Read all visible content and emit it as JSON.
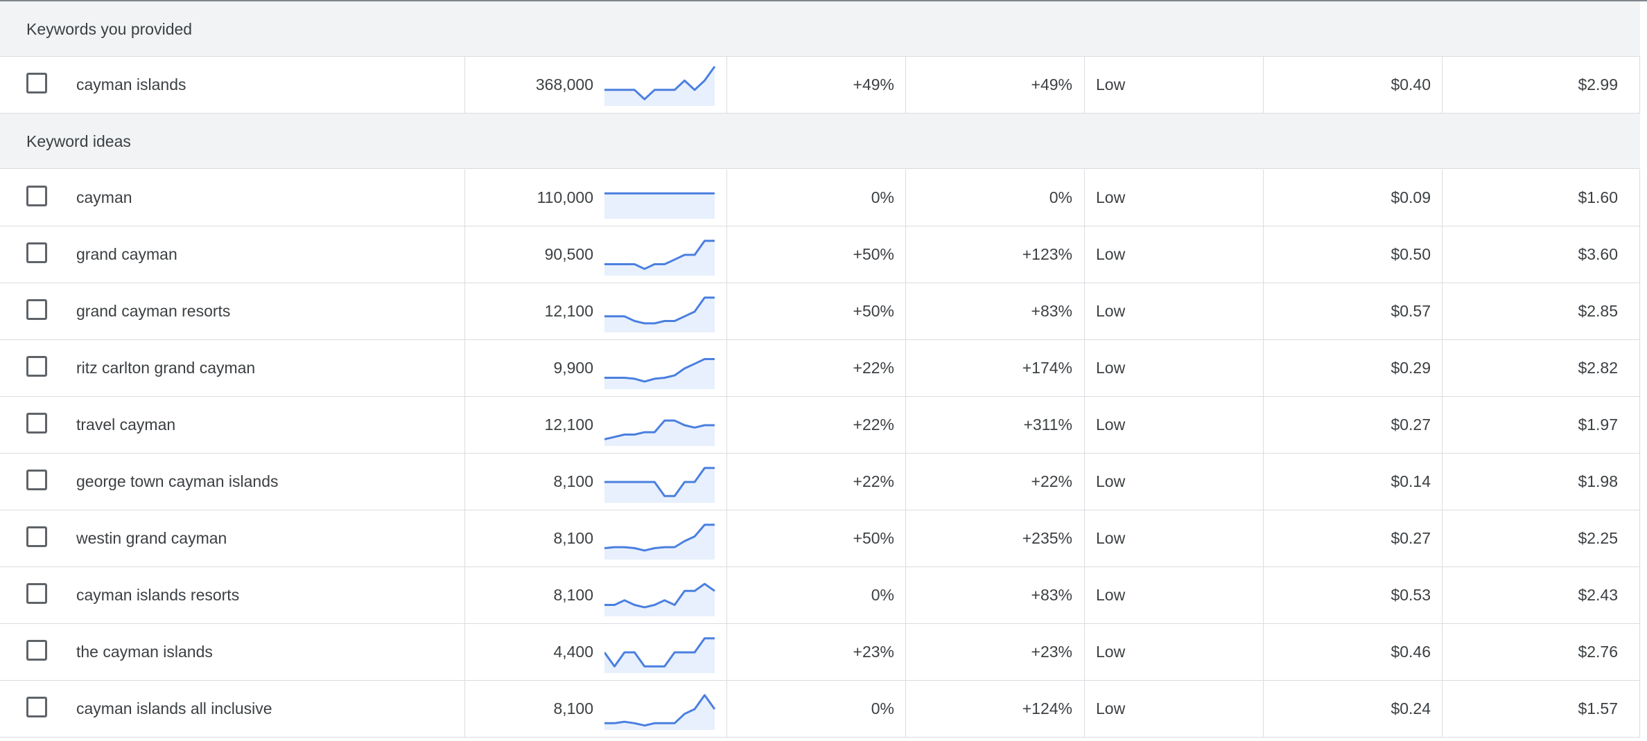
{
  "colors": {
    "sparkline_line": "#4a7fe0",
    "sparkline_fill": "#e8f0fd",
    "section_bg": "#f1f3f4",
    "divider": "#dadce0",
    "text": "#3c4043"
  },
  "provided_section": {
    "title": "Keywords you provided",
    "rows": [
      {
        "keyword": "cayman islands",
        "volume": "368,000",
        "change_3m": "+49%",
        "change_yoy": "+49%",
        "competition": "Low",
        "bid_low": "$0.40",
        "bid_high": "$2.99",
        "trend": [
          3,
          3,
          3,
          3,
          1,
          3,
          3,
          3,
          5,
          3,
          5,
          8
        ]
      }
    ]
  },
  "ideas_section": {
    "title": "Keyword ideas",
    "rows": [
      {
        "keyword": "cayman",
        "volume": "110,000",
        "change_3m": "0%",
        "change_yoy": "0%",
        "competition": "Low",
        "bid_low": "$0.09",
        "bid_high": "$1.60",
        "trend": [
          5,
          5,
          5,
          5,
          5,
          5,
          5,
          5,
          5,
          5,
          5,
          5
        ]
      },
      {
        "keyword": "grand cayman",
        "volume": "90,500",
        "change_3m": "+50%",
        "change_yoy": "+123%",
        "competition": "Low",
        "bid_low": "$0.50",
        "bid_high": "$3.60",
        "trend": [
          2,
          2,
          2,
          2,
          1,
          2,
          2,
          3,
          4,
          4,
          7,
          7
        ]
      },
      {
        "keyword": "grand cayman resorts",
        "volume": "12,100",
        "change_3m": "+50%",
        "change_yoy": "+83%",
        "competition": "Low",
        "bid_low": "$0.57",
        "bid_high": "$2.85",
        "trend": [
          3,
          3,
          3,
          2,
          1.5,
          1.5,
          2,
          2,
          3,
          4,
          7,
          7
        ]
      },
      {
        "keyword": "ritz carlton grand cayman",
        "volume": "9,900",
        "change_3m": "+22%",
        "change_yoy": "+174%",
        "competition": "Low",
        "bid_low": "$0.29",
        "bid_high": "$2.82",
        "trend": [
          2,
          2,
          2,
          1.8,
          1.2,
          1.8,
          2,
          2.5,
          4,
          5,
          6,
          6
        ]
      },
      {
        "keyword": "travel cayman",
        "volume": "12,100",
        "change_3m": "+22%",
        "change_yoy": "+311%",
        "competition": "Low",
        "bid_low": "$0.27",
        "bid_high": "$1.97",
        "trend": [
          1,
          1.5,
          2,
          2,
          2.5,
          2.5,
          5,
          5,
          4,
          3.5,
          4,
          4
        ]
      },
      {
        "keyword": "george town cayman islands",
        "volume": "8,100",
        "change_3m": "+22%",
        "change_yoy": "+22%",
        "competition": "Low",
        "bid_low": "$0.14",
        "bid_high": "$1.98",
        "trend": [
          4,
          4,
          4,
          4,
          4,
          4,
          1,
          1,
          4,
          4,
          7,
          7
        ]
      },
      {
        "keyword": "westin grand cayman",
        "volume": "8,100",
        "change_3m": "+50%",
        "change_yoy": "+235%",
        "competition": "Low",
        "bid_low": "$0.27",
        "bid_high": "$2.25",
        "trend": [
          2,
          2.2,
          2.2,
          2,
          1.5,
          2,
          2.2,
          2.2,
          3.5,
          4.5,
          7,
          7
        ]
      },
      {
        "keyword": "cayman islands resorts",
        "volume": "8,100",
        "change_3m": "0%",
        "change_yoy": "+83%",
        "competition": "Low",
        "bid_low": "$0.53",
        "bid_high": "$2.43",
        "trend": [
          2,
          2,
          3,
          2,
          1.5,
          2,
          3,
          2,
          5,
          5,
          6.5,
          5
        ]
      },
      {
        "keyword": "the cayman islands",
        "volume": "4,400",
        "change_3m": "+23%",
        "change_yoy": "+23%",
        "competition": "Low",
        "bid_low": "$0.46",
        "bid_high": "$2.76",
        "trend": [
          4,
          1,
          4,
          4,
          1,
          1,
          1,
          4,
          4,
          4,
          7,
          7
        ]
      },
      {
        "keyword": "cayman islands all inclusive",
        "volume": "8,100",
        "change_3m": "0%",
        "change_yoy": "+124%",
        "competition": "Low",
        "bid_low": "$0.24",
        "bid_high": "$1.57",
        "trend": [
          1,
          1,
          1.3,
          1,
          0.5,
          1,
          1,
          1,
          3,
          4,
          7,
          4
        ]
      }
    ]
  }
}
